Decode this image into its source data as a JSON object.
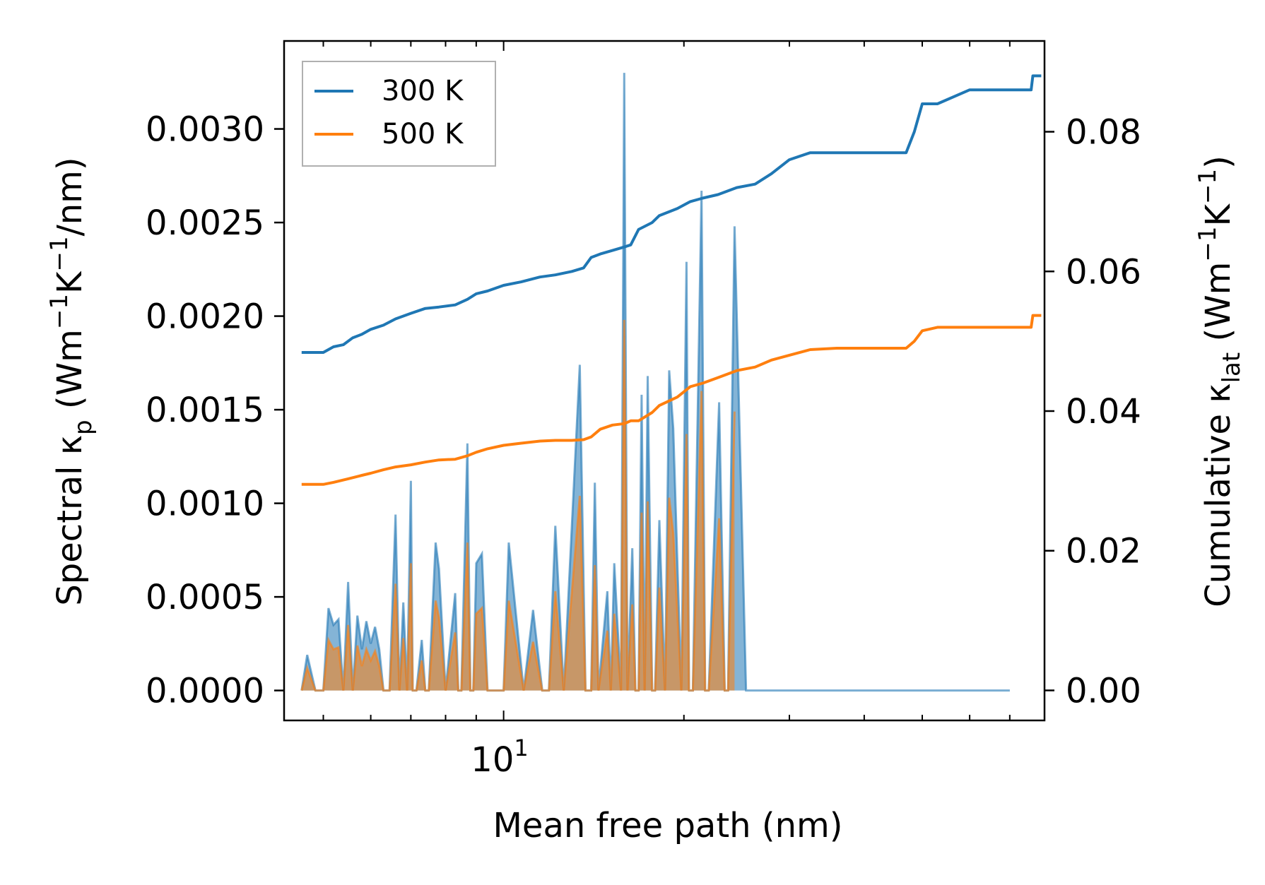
{
  "chart_data": {
    "type": "line",
    "xlabel": "Mean free path (nm)",
    "x_scale": "log",
    "xlim": [
      4.3,
      80
    ],
    "x_major_tick_label": {
      "base": "10",
      "exponent": "1",
      "value": 10
    },
    "y_left": {
      "label_main": "Spectral κ",
      "label_sub": "p",
      "label_units": {
        "open": " (Wm",
        "exp1": "−1",
        "mid": "K",
        "exp2": "−1",
        "close": "/nm)"
      },
      "ylim": [
        -0.00016,
        0.00347
      ],
      "ticks": [
        "0.0000",
        "0.0005",
        "0.0010",
        "0.0015",
        "0.0020",
        "0.0025",
        "0.0030"
      ],
      "tick_values": [
        0,
        0.0005,
        0.001,
        0.0015,
        0.002,
        0.0025,
        0.003
      ]
    },
    "y_right": {
      "label_main": "Cumulative κ",
      "label_sub": "lat",
      "label_units": {
        "open": " (Wm",
        "exp1": "−1",
        "mid": "K",
        "exp2": "−1",
        "close": ")"
      },
      "ylim": [
        -0.0043,
        0.093
      ],
      "ticks": [
        "0.00",
        "0.02",
        "0.04",
        "0.06",
        "0.08"
      ],
      "tick_values": [
        0,
        0.02,
        0.04,
        0.06,
        0.08
      ]
    },
    "legend": {
      "position": "top-left",
      "entries": [
        "300 K",
        "500 K"
      ]
    },
    "colors": {
      "300 K": "#1f77b4",
      "500 K": "#ff7f0e"
    },
    "series": [
      {
        "name": "300 K",
        "axis": "right",
        "kind": "cumulative",
        "x": [
          4.6,
          5.0,
          5.2,
          5.4,
          5.6,
          5.8,
          6.0,
          6.3,
          6.6,
          7.0,
          7.4,
          7.8,
          8.3,
          8.7,
          9.0,
          9.4,
          10.0,
          10.7,
          11.5,
          12.2,
          13.0,
          13.6,
          14.0,
          14.5,
          15.2,
          15.9,
          16.3,
          16.8,
          17.7,
          18.2,
          19.5,
          20.5,
          21.5,
          22.8,
          24.5,
          26.3,
          28.0,
          30.0,
          32.5,
          36.0,
          40.0,
          47.0,
          48.5,
          50.0,
          53.0,
          60.0,
          70.0,
          76.0,
          76.5,
          79.0
        ],
        "values": [
          0.0484,
          0.0484,
          0.0492,
          0.0495,
          0.0505,
          0.051,
          0.0517,
          0.0523,
          0.0532,
          0.054,
          0.0547,
          0.0549,
          0.0552,
          0.056,
          0.0568,
          0.0572,
          0.058,
          0.0585,
          0.0592,
          0.0595,
          0.06,
          0.0605,
          0.062,
          0.0625,
          0.063,
          0.0635,
          0.0638,
          0.066,
          0.067,
          0.068,
          0.069,
          0.07,
          0.0705,
          0.071,
          0.072,
          0.0725,
          0.074,
          0.076,
          0.077,
          0.077,
          0.077,
          0.077,
          0.08,
          0.084,
          0.084,
          0.086,
          0.086,
          0.086,
          0.088,
          0.088
        ]
      },
      {
        "name": "500 K",
        "axis": "right",
        "kind": "cumulative",
        "x": [
          4.6,
          5.0,
          5.2,
          5.5,
          5.8,
          6.0,
          6.3,
          6.6,
          7.0,
          7.4,
          7.8,
          8.3,
          8.7,
          9.0,
          9.4,
          10.0,
          10.7,
          11.5,
          12.2,
          13.0,
          13.6,
          14.0,
          14.5,
          15.2,
          15.9,
          16.3,
          16.8,
          17.7,
          18.2,
          19.5,
          20.5,
          21.5,
          22.8,
          24.5,
          26.3,
          28.0,
          30.0,
          32.5,
          36.0,
          40.0,
          47.0,
          48.5,
          50.0,
          53.0,
          60.0,
          70.0,
          76.0,
          76.5,
          79.0
        ],
        "values": [
          0.0295,
          0.0295,
          0.0298,
          0.0303,
          0.0308,
          0.0311,
          0.0316,
          0.032,
          0.0323,
          0.0327,
          0.033,
          0.0331,
          0.0336,
          0.0341,
          0.0346,
          0.0351,
          0.0354,
          0.0357,
          0.0358,
          0.0358,
          0.0359,
          0.0363,
          0.0374,
          0.038,
          0.0382,
          0.0386,
          0.0386,
          0.0398,
          0.0408,
          0.042,
          0.0435,
          0.044,
          0.0448,
          0.0458,
          0.0463,
          0.0473,
          0.048,
          0.0488,
          0.049,
          0.049,
          0.049,
          0.05,
          0.0515,
          0.052,
          0.052,
          0.052,
          0.052,
          0.0537,
          0.0537
        ]
      },
      {
        "name": "300 K",
        "axis": "left",
        "kind": "spectral",
        "x": [
          4.6,
          4.7,
          4.85,
          5.0,
          5.1,
          5.2,
          5.3,
          5.4,
          5.5,
          5.6,
          5.7,
          5.8,
          5.9,
          6.0,
          6.1,
          6.2,
          6.3,
          6.45,
          6.6,
          6.7,
          6.8,
          6.9,
          7.0,
          7.05,
          7.15,
          7.3,
          7.4,
          7.5,
          7.7,
          7.8,
          8.0,
          8.3,
          8.4,
          8.5,
          8.7,
          8.8,
          8.9,
          9.0,
          9.2,
          9.4,
          9.6,
          9.8,
          10.0,
          10.2,
          10.8,
          11.2,
          11.6,
          11.9,
          12.2,
          12.6,
          13.4,
          13.7,
          14.0,
          14.2,
          14.4,
          14.9,
          15.1,
          15.3,
          15.7,
          15.9,
          16.1,
          16.4,
          16.6,
          16.8,
          17.0,
          17.2,
          17.4,
          17.7,
          17.9,
          18.2,
          18.6,
          18.9,
          19.2,
          19.8,
          20.2,
          20.4,
          20.7,
          21.4,
          21.7,
          22.0,
          22.9,
          23.4,
          23.7,
          24.3,
          25.4,
          25.7,
          26.0,
          26.3,
          26.6,
          26.9,
          27.3,
          29.8,
          30.0,
          30.2,
          31.0,
          38.0,
          38.7,
          39.2,
          39.7,
          42.5,
          43.0,
          43.5,
          68.0,
          68.8,
          69.4,
          70.0
        ],
        "values": [
          0,
          0.00019,
          0.0,
          0.0,
          0.00044,
          0.00035,
          0.00038,
          0.0,
          0.00058,
          0.0,
          0.0004,
          0.00022,
          0.00037,
          0.00025,
          0.00034,
          0.00022,
          0.0,
          0.0,
          0.00094,
          0.0,
          0.00047,
          0.0,
          0.00112,
          0.0,
          0.0,
          0.00027,
          0.0,
          0.0,
          0.00079,
          0.00065,
          0.0,
          0.00052,
          0.0,
          0.0,
          0.00132,
          0.0,
          0.0,
          0.00068,
          0.00073,
          0.0,
          0.0,
          0.0,
          0.0,
          0.00079,
          0.0,
          0.00043,
          0.0,
          0.0,
          0.00088,
          0.0,
          0.00174,
          0.0,
          0.0,
          0.00111,
          0.0,
          0.00053,
          0.0,
          0.00068,
          0.0,
          0.0033,
          0.0,
          0.00076,
          0.0,
          0.0,
          0.00158,
          0.0,
          0.00168,
          0.0,
          0.0,
          0.00091,
          0.0,
          0.00171,
          0.0014,
          0.0,
          0.00229,
          0.0,
          0.0,
          0.00267,
          0.0,
          0.0,
          0.00154,
          0.0,
          0.0,
          0.00248,
          0.0,
          0.0,
          0.0,
          0.0,
          0.0,
          0.0,
          0.0,
          0.0,
          0.0,
          0.0,
          0.0,
          0.0,
          0.0,
          0.0,
          0.0,
          0.0,
          0.0,
          0.0,
          0.0,
          0.0,
          0.0,
          0.0
        ]
      },
      {
        "name": "500 K",
        "axis": "left",
        "kind": "spectral",
        "x": [
          4.6,
          4.7,
          4.85,
          5.0,
          5.1,
          5.2,
          5.3,
          5.4,
          5.5,
          5.6,
          5.7,
          5.8,
          5.9,
          6.0,
          6.1,
          6.2,
          6.3,
          6.45,
          6.6,
          6.7,
          6.8,
          6.9,
          7.0,
          7.05,
          7.15,
          7.3,
          7.4,
          7.5,
          7.7,
          7.8,
          8.0,
          8.3,
          8.4,
          8.5,
          8.7,
          8.8,
          8.9,
          9.0,
          9.2,
          9.4,
          9.6,
          9.8,
          10.0,
          10.2,
          10.8,
          11.2,
          11.6,
          11.9,
          12.2,
          12.6,
          13.4,
          13.7,
          14.0,
          14.2,
          14.4,
          14.9,
          15.1,
          15.3,
          15.7,
          15.9,
          16.1,
          16.4,
          16.6,
          16.8,
          17.0,
          17.2,
          17.4,
          17.7,
          17.9,
          18.2,
          18.6,
          18.9,
          19.2,
          19.8,
          20.2,
          20.4,
          20.7,
          21.4,
          21.7,
          22.0,
          22.9,
          23.4,
          23.7,
          24.3
        ],
        "values": [
          0,
          0.00012,
          0.0,
          0.0,
          0.00027,
          0.00022,
          0.00023,
          0.0,
          0.00035,
          0.0,
          0.00024,
          0.00013,
          0.00022,
          0.00016,
          0.00021,
          0.00013,
          0.0,
          0.0,
          0.00057,
          0.0,
          0.00028,
          0.0,
          0.00068,
          0.0,
          0.0,
          0.00016,
          0.0,
          0.0,
          0.00048,
          0.00039,
          0.0,
          0.00031,
          0.0,
          0.0,
          0.00079,
          0.0,
          0.0,
          0.00041,
          0.00044,
          0.0,
          0.0,
          0.0,
          0.0,
          0.00048,
          0.0,
          0.00026,
          0.0,
          0.0,
          0.00053,
          0.0,
          0.00104,
          0.0,
          0.0,
          0.00067,
          0.0,
          0.00032,
          0.0,
          0.00041,
          0.0,
          0.00198,
          0.0,
          0.00046,
          0.0,
          0.0,
          0.00095,
          0.0,
          0.00101,
          0.0,
          0.0,
          0.00055,
          0.0,
          0.00103,
          0.00084,
          0.0,
          0.00137,
          0.0,
          0.0,
          0.0016,
          0.0,
          0.0,
          0.00092,
          0.0,
          0.0,
          0.00149
        ]
      }
    ]
  }
}
